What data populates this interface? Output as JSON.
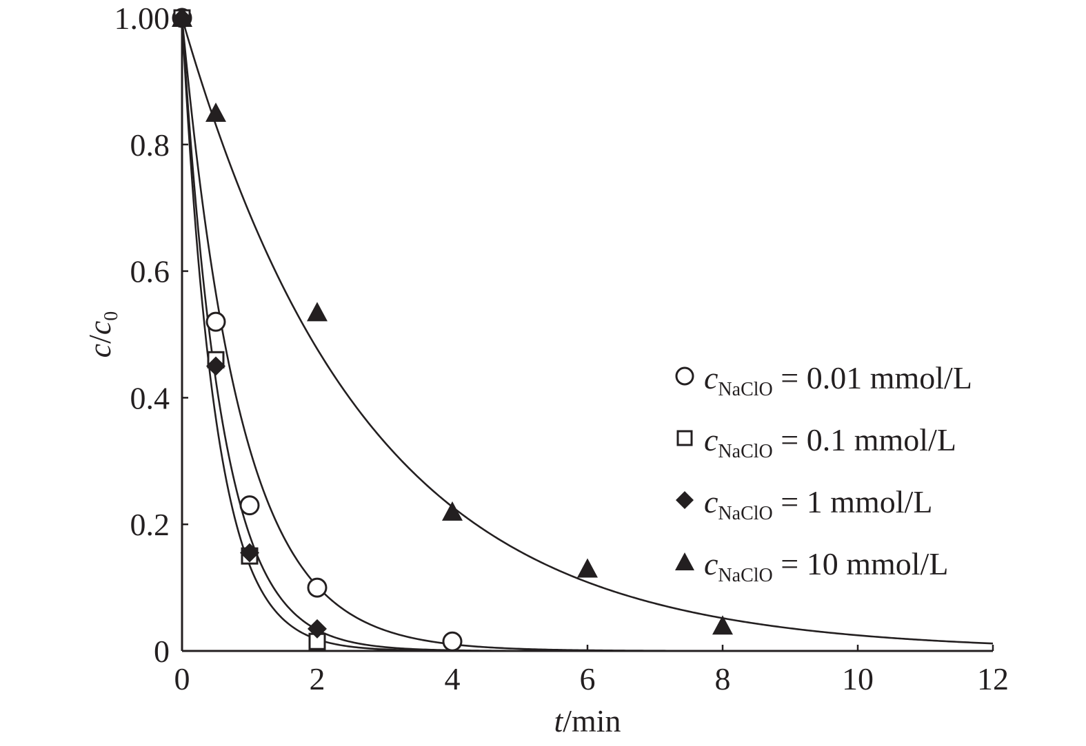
{
  "chart_data": {
    "type": "scatter",
    "xlabel": {
      "var": "t",
      "unit": "/min"
    },
    "ylabel": {
      "var": "c",
      "sep": "/",
      "var2": "c",
      "sub2": "0"
    },
    "xlim": [
      0,
      12
    ],
    "ylim": [
      0,
      1.0
    ],
    "xticks": [
      0,
      2,
      4,
      6,
      8,
      10,
      12
    ],
    "xtick_labels": [
      "0",
      "2",
      "4",
      "6",
      "8",
      "10",
      "12"
    ],
    "yticks": [
      0,
      0.2,
      0.4,
      0.6,
      0.8,
      1.0
    ],
    "ytick_labels": [
      "0",
      "0.2",
      "0.4",
      "0.6",
      "0.8",
      "1.00"
    ],
    "grid": false,
    "legend_position": "right",
    "series": [
      {
        "legend": {
          "var": "c",
          "sub": "NaClO",
          "rest": " = 0.01 mmol/L"
        },
        "marker": "open-circle",
        "x": [
          0,
          0.5,
          1,
          2,
          4
        ],
        "y": [
          1.0,
          0.52,
          0.23,
          0.1,
          0.015
        ],
        "fit_k": 1.14
      },
      {
        "legend": {
          "var": "c",
          "sub": "NaClO",
          "rest": " = 0.1 mmol/L"
        },
        "marker": "open-square",
        "x": [
          0,
          0.5,
          1,
          2
        ],
        "y": [
          1.0,
          0.46,
          0.15,
          0.015
        ],
        "fit_k": 2.0
      },
      {
        "legend": {
          "var": "c",
          "sub": "NaClO",
          "rest": " = 1 mmol/L"
        },
        "marker": "filled-diamond",
        "x": [
          0,
          0.5,
          1,
          2
        ],
        "y": [
          1.0,
          0.45,
          0.155,
          0.035
        ],
        "fit_k": 1.7
      },
      {
        "legend": {
          "var": "c",
          "sub": "NaClO",
          "rest": " = 10 mmol/L"
        },
        "marker": "filled-triangle",
        "x": [
          0,
          0.5,
          2,
          4,
          6,
          8
        ],
        "y": [
          1.0,
          0.85,
          0.535,
          0.22,
          0.13,
          0.04
        ],
        "fit_k": 0.37
      }
    ],
    "colors": {
      "ink": "#231f20",
      "background": "#ffffff"
    }
  }
}
